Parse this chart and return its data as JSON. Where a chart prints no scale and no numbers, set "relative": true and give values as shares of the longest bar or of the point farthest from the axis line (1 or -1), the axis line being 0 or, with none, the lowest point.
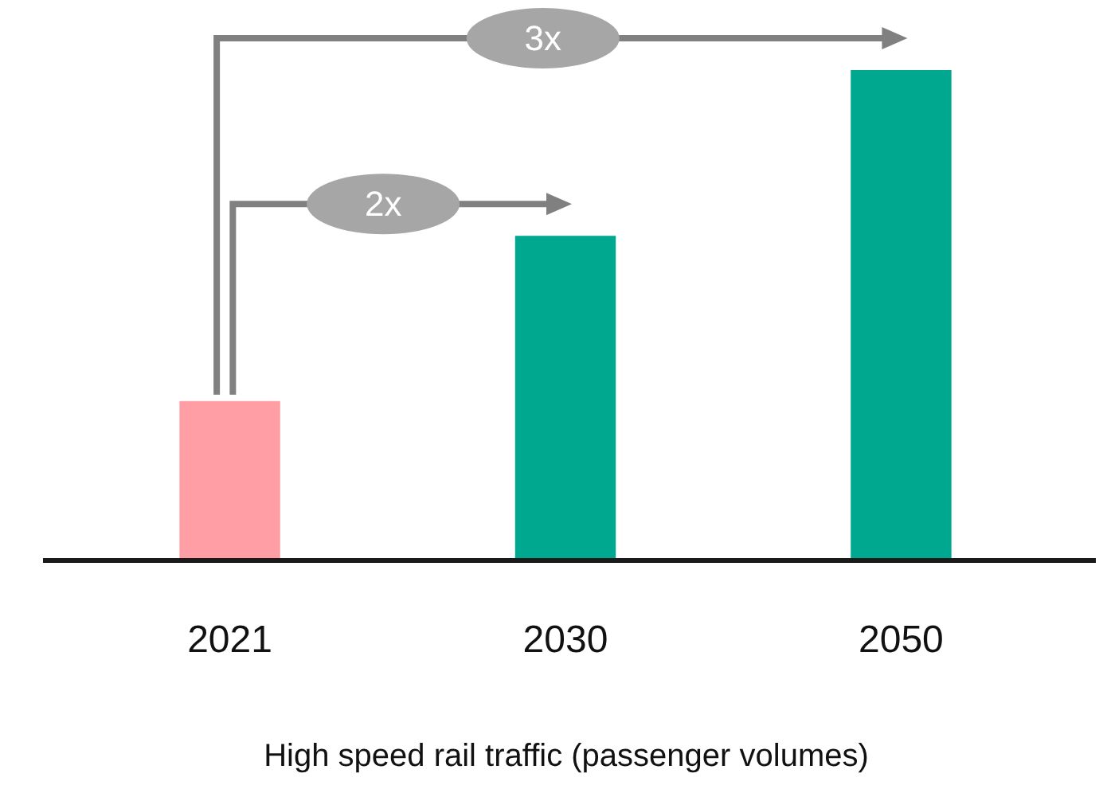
{
  "chart_data": {
    "type": "bar",
    "relative": true,
    "xlabel": "High speed rail traffic (passenger volumes)",
    "categories": [
      "2021",
      "2030",
      "2050"
    ],
    "values": [
      0.325,
      0.662,
      1
    ],
    "colors": [
      "#ff9ea5",
      "#00a88f",
      "#00a88f"
    ],
    "annotations": [
      "2x",
      "3x"
    ]
  }
}
